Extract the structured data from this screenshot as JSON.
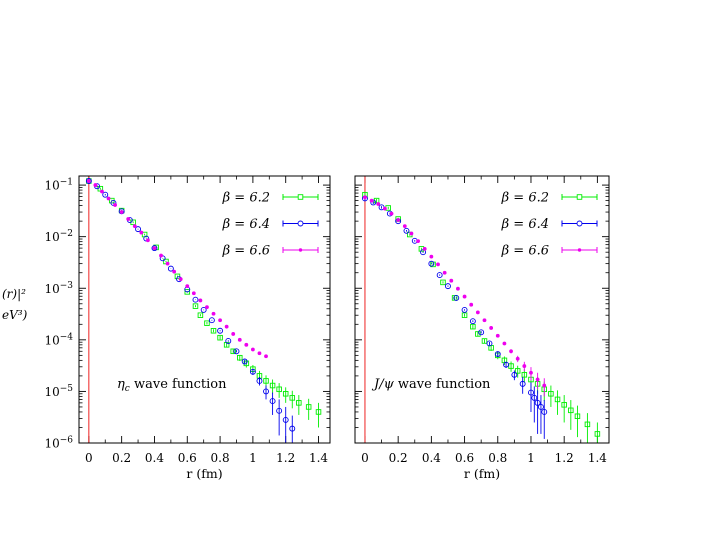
{
  "colors": {
    "b62": "#00ee00",
    "b64": "#0000ee",
    "b66": "#ee00ee",
    "origin_line": "#ee2222"
  },
  "ylabel_fragments": [
    "(r)|²",
    "eV³)"
  ],
  "chart_data": [
    {
      "type": "scatter",
      "annotation": "η_c wave function",
      "annotation_main": "η",
      "annotation_sub": "c",
      "annotation_rest": " wave function",
      "xlabel": "r (fm)",
      "ylabel": "",
      "xlim": [
        -0.06,
        1.47
      ],
      "ylim": [
        1e-06,
        0.15
      ],
      "yscale": "log",
      "xticks": [
        0,
        0.2,
        0.4,
        0.6,
        0.8,
        1,
        1.2,
        1.4
      ],
      "xtick_labels": [
        "0",
        "0.2",
        "0.4",
        "0.6",
        "0.8",
        "1",
        "1.2",
        "1.4"
      ],
      "yticks": [
        1e-06,
        1e-05,
        0.0001,
        0.001,
        0.01,
        0.1
      ],
      "ytick_labels": [
        {
          "base": "10",
          "exp": "−6"
        },
        {
          "base": "10",
          "exp": "−5"
        },
        {
          "base": "10",
          "exp": "−4"
        },
        {
          "base": "10",
          "exp": "−3"
        },
        {
          "base": "10",
          "exp": "−2"
        },
        {
          "base": "10",
          "exp": "−1"
        }
      ],
      "legend_position": "top-right",
      "series": [
        {
          "name": "β = 6.2",
          "marker": "square",
          "x": [
            0.0,
            0.07,
            0.14,
            0.2,
            0.27,
            0.34,
            0.41,
            0.47,
            0.54,
            0.6,
            0.65,
            0.68,
            0.72,
            0.76,
            0.8,
            0.84,
            0.88,
            0.92,
            0.96,
            1.0,
            1.04,
            1.08,
            1.12,
            1.16,
            1.2,
            1.24,
            1.28,
            1.34,
            1.4
          ],
          "y": [
            0.12,
            0.085,
            0.05,
            0.032,
            0.019,
            0.011,
            0.0062,
            0.0033,
            0.0017,
            0.00085,
            0.00045,
            0.0003,
            0.00021,
            0.00015,
            0.00011,
            8e-05,
            6e-05,
            4.5e-05,
            3.5e-05,
            2.7e-05,
            2e-05,
            1.6e-05,
            1.3e-05,
            1.1e-05,
            9e-06,
            7.5e-06,
            6e-06,
            5e-06,
            4e-06
          ],
          "err": [
            0.01,
            0.004,
            0.002,
            0.0012,
            0.0007,
            0.0004,
            0.0002,
            0.0001,
            6e-05,
            3e-05,
            2e-05,
            1.5e-05,
            1.2e-05,
            1e-05,
            9e-06,
            8e-06,
            7e-06,
            6e-06,
            6e-06,
            5.5e-06,
            5e-06,
            4.5e-06,
            4e-06,
            3.5e-06,
            3e-06,
            2.8e-06,
            2.5e-06,
            2.2e-06,
            2e-06
          ]
        },
        {
          "name": "β = 6.4",
          "marker": "circle",
          "x": [
            0.0,
            0.05,
            0.1,
            0.15,
            0.2,
            0.25,
            0.3,
            0.35,
            0.4,
            0.45,
            0.5,
            0.55,
            0.6,
            0.65,
            0.7,
            0.75,
            0.8,
            0.85,
            0.9,
            0.95,
            1.0,
            1.04,
            1.08,
            1.12,
            1.16,
            1.2,
            1.24
          ],
          "y": [
            0.12,
            0.095,
            0.065,
            0.045,
            0.031,
            0.021,
            0.014,
            0.0092,
            0.006,
            0.0038,
            0.0024,
            0.0015,
            0.00095,
            0.0006,
            0.00038,
            0.00024,
            0.00015,
            9.5e-05,
            6e-05,
            3.8e-05,
            2.4e-05,
            1.6e-05,
            1e-05,
            6.5e-06,
            4.2e-06,
            2.8e-06,
            1.9e-06
          ],
          "err": [
            0.01,
            0.004,
            0.002,
            0.0012,
            0.0007,
            0.0004,
            0.0002,
            0.0001,
            6e-05,
            3.5e-05,
            2e-05,
            1.2e-05,
            8e-06,
            6e-06,
            5e-06,
            4e-06,
            3.5e-06,
            3e-06,
            3e-06,
            3e-06,
            3e-06,
            3e-06,
            3e-06,
            3e-06,
            2.8e-06,
            2.2e-06,
            1.5e-06
          ]
        },
        {
          "name": "β = 6.6",
          "marker": "dot",
          "x": [
            0.0,
            0.04,
            0.08,
            0.12,
            0.16,
            0.2,
            0.24,
            0.28,
            0.32,
            0.36,
            0.4,
            0.44,
            0.48,
            0.52,
            0.56,
            0.6,
            0.64,
            0.68,
            0.72,
            0.76,
            0.8,
            0.84,
            0.88,
            0.92,
            0.96,
            1.0,
            1.04,
            1.08
          ],
          "y": [
            0.12,
            0.1,
            0.075,
            0.055,
            0.041,
            0.03,
            0.022,
            0.016,
            0.012,
            0.0085,
            0.006,
            0.0043,
            0.003,
            0.0021,
            0.0015,
            0.0011,
            0.0008,
            0.00058,
            0.00043,
            0.00032,
            0.00024,
            0.00018,
            0.00013,
            0.0001,
            8e-05,
            6.5e-05,
            5.5e-05,
            4.8e-05
          ],
          "err": [
            0.01,
            0.004,
            0.002,
            0.0015,
            0.001,
            0.0006,
            0.0004,
            0.0003,
            0.0002,
            0.00012,
            8e-05,
            6e-05,
            4e-05,
            3e-05,
            2e-05,
            1.5e-05,
            1.2e-05,
            1e-05,
            8e-06,
            7e-06,
            6e-06,
            5e-06,
            4.5e-06,
            4e-06,
            3.5e-06,
            3e-06,
            2.8e-06,
            2.5e-06
          ]
        }
      ]
    },
    {
      "type": "scatter",
      "annotation": "J/ψ wave function",
      "annotation_main": "J/ψ",
      "annotation_sub": "",
      "annotation_rest": " wave function",
      "xlabel": "r (fm)",
      "ylabel": "",
      "xlim": [
        -0.06,
        1.47
      ],
      "ylim": [
        1e-06,
        0.15
      ],
      "yscale": "log",
      "xticks": [
        0,
        0.2,
        0.4,
        0.6,
        0.8,
        1,
        1.2,
        1.4
      ],
      "xtick_labels": [
        "0",
        "0.2",
        "0.4",
        "0.6",
        "0.8",
        "1",
        "1.2",
        "1.4"
      ],
      "yticks": [
        1e-06,
        1e-05,
        0.0001,
        0.001,
        0.01,
        0.1
      ],
      "legend_position": "top-right",
      "series": [
        {
          "name": "β = 6.2",
          "marker": "square",
          "x": [
            0.0,
            0.07,
            0.14,
            0.2,
            0.27,
            0.34,
            0.41,
            0.47,
            0.54,
            0.6,
            0.65,
            0.68,
            0.72,
            0.76,
            0.8,
            0.84,
            0.88,
            0.92,
            0.96,
            1.0,
            1.04,
            1.08,
            1.12,
            1.16,
            1.2,
            1.24,
            1.28,
            1.34,
            1.4
          ],
          "y": [
            0.065,
            0.05,
            0.036,
            0.022,
            0.011,
            0.0058,
            0.0029,
            0.0013,
            0.00065,
            0.0003,
            0.00018,
            0.00013,
            9.5e-05,
            7e-05,
            5e-05,
            4e-05,
            3.1e-05,
            2.5e-05,
            2.1e-05,
            1.7e-05,
            1.4e-05,
            1.1e-05,
            9e-06,
            7e-06,
            5.5e-06,
            4.3e-06,
            3.3e-06,
            2.3e-06,
            1.5e-06
          ],
          "err": [
            0.008,
            0.004,
            0.002,
            0.0012,
            0.0006,
            0.0003,
            0.00015,
            7e-05,
            4e-05,
            2e-05,
            1.5e-05,
            1.2e-05,
            1e-05,
            9e-06,
            8e-06,
            7.5e-06,
            7e-06,
            6.5e-06,
            6e-06,
            5.5e-06,
            5e-06,
            4.5e-06,
            4e-06,
            3.5e-06,
            3e-06,
            2.5e-06,
            2e-06,
            1.5e-06,
            1e-06
          ]
        },
        {
          "name": "β = 6.4",
          "marker": "circle",
          "x": [
            0.0,
            0.05,
            0.1,
            0.15,
            0.2,
            0.25,
            0.3,
            0.35,
            0.4,
            0.45,
            0.5,
            0.55,
            0.6,
            0.65,
            0.7,
            0.75,
            0.8,
            0.85,
            0.9,
            0.95,
            1.0,
            1.02,
            1.04,
            1.06,
            1.08
          ],
          "y": [
            0.055,
            0.046,
            0.037,
            0.028,
            0.02,
            0.013,
            0.0083,
            0.005,
            0.003,
            0.0018,
            0.0011,
            0.00065,
            0.00038,
            0.00023,
            0.00014,
            8.5e-05,
            5.3e-05,
            3.3e-05,
            2.1e-05,
            1.4e-05,
            9.5e-06,
            7.5e-06,
            6e-06,
            5e-06,
            4e-06
          ],
          "err": [
            0.005,
            0.003,
            0.002,
            0.0012,
            0.0008,
            0.0005,
            0.0003,
            0.00015,
            8e-05,
            5e-05,
            3e-05,
            1.8e-05,
            1.2e-05,
            9e-06,
            7e-06,
            6e-06,
            5e-06,
            4.5e-06,
            4.5e-06,
            5e-06,
            5.5e-06,
            5e-06,
            4.5e-06,
            3.5e-06,
            2.8e-06
          ]
        },
        {
          "name": "β = 6.6",
          "marker": "dot",
          "x": [
            0.0,
            0.04,
            0.08,
            0.12,
            0.16,
            0.2,
            0.24,
            0.28,
            0.32,
            0.36,
            0.4,
            0.44,
            0.48,
            0.52,
            0.56,
            0.6,
            0.64,
            0.68,
            0.72,
            0.76,
            0.8,
            0.84,
            0.88,
            0.92,
            0.96,
            1.0,
            1.04,
            1.08
          ],
          "y": [
            0.058,
            0.05,
            0.043,
            0.035,
            0.028,
            0.021,
            0.016,
            0.0115,
            0.0082,
            0.0058,
            0.0041,
            0.0029,
            0.002,
            0.0014,
            0.00098,
            0.00069,
            0.00048,
            0.00034,
            0.00024,
            0.00017,
            0.00012,
            8.5e-05,
            6e-05,
            4.3e-05,
            3.1e-05,
            2.3e-05,
            1.7e-05,
            1.3e-05
          ],
          "err": [
            0.004,
            0.003,
            0.002,
            0.0015,
            0.001,
            0.0007,
            0.0005,
            0.0003,
            0.0002,
            0.00013,
            9e-05,
            6e-05,
            4e-05,
            3e-05,
            2.2e-05,
            1.6e-05,
            1.2e-05,
            9e-06,
            7e-06,
            6e-06,
            5e-06,
            5e-06,
            5.5e-06,
            6e-06,
            6.5e-06,
            6.5e-06,
            6e-06,
            5e-06
          ]
        }
      ]
    }
  ]
}
